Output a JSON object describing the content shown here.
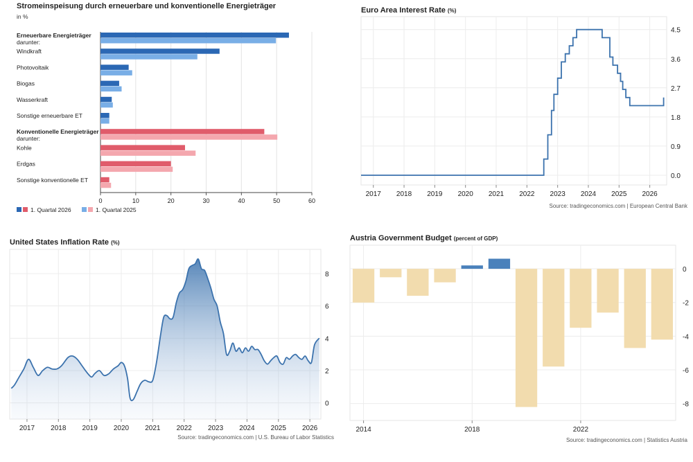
{
  "chart_data": [
    {
      "type": "bar",
      "orientation": "horizontal",
      "title": "Stromeinspeisung durch erneuerbare und konventionelle Energieträger",
      "subtitle": "in %",
      "categories": [
        {
          "label": "Erneuerbare Energieträger",
          "sublabel": "darunter:",
          "bold": true
        },
        {
          "label": "Windkraft"
        },
        {
          "label": "Photovoltaik"
        },
        {
          "label": "Biogas"
        },
        {
          "label": "Wasserkraft"
        },
        {
          "label": "Sonstige erneuerbare ET"
        },
        {
          "label": "Konventionelle Energieträger",
          "sublabel": "darunter:",
          "bold": true
        },
        {
          "label": "Kohle"
        },
        {
          "label": "Erdgas"
        },
        {
          "label": "Sonstige konventionelle ET"
        }
      ],
      "group": [
        "renewable",
        "renewable",
        "renewable",
        "renewable",
        "renewable",
        "renewable",
        "conventional",
        "conventional",
        "conventional",
        "conventional"
      ],
      "series": [
        {
          "name": "1. Quartal 2026",
          "values": [
            53.5,
            33.8,
            8.0,
            5.3,
            3.2,
            2.5,
            46.5,
            24.0,
            20.0,
            2.5
          ]
        },
        {
          "name": "1. Quartal 2025",
          "values": [
            49.8,
            27.5,
            9.0,
            6.0,
            3.5,
            2.5,
            50.2,
            27.0,
            20.5,
            3.0
          ]
        }
      ],
      "xlim": [
        0,
        60
      ],
      "xticks": [
        "0",
        "10",
        "20",
        "30",
        "40",
        "50",
        "60"
      ],
      "legend": [
        "1. Quartal 2026",
        "1. Quartal 2025"
      ],
      "legend_position": "bottom-left",
      "colors": {
        "renewable_2026": "#2b68b4",
        "renewable_2025": "#79aee6",
        "conventional_2026": "#e05c6b",
        "conventional_2025": "#f4a7ae"
      }
    },
    {
      "type": "line",
      "title": "Euro Area Interest Rate",
      "title_unit": "(%)",
      "xticks": [
        "2017",
        "2018",
        "2019",
        "2020",
        "2021",
        "2022",
        "2023",
        "2024",
        "2025",
        "2026"
      ],
      "yticks": [
        "0.0",
        "0.9",
        "1.8",
        "2.7",
        "3.6",
        "4.5"
      ],
      "xlim": [
        2016.6,
        2026.55
      ],
      "ylim": [
        -0.3,
        4.9
      ],
      "y_axis_side": "right",
      "grid": true,
      "line_color": "#3b72ad",
      "series": [
        {
          "x": [
            2016.6,
            2022.55,
            2022.55,
            2022.68,
            2022.68,
            2022.8,
            2022.8,
            2022.88,
            2022.88,
            2023.0,
            2023.0,
            2023.12,
            2023.12,
            2023.25,
            2023.25,
            2023.38,
            2023.38,
            2023.5,
            2023.5,
            2023.62,
            2023.62,
            2023.72,
            2023.72,
            2024.45,
            2024.45,
            2024.7,
            2024.7,
            2024.8,
            2024.8,
            2024.95,
            2024.95,
            2025.05,
            2025.05,
            2025.12,
            2025.12,
            2025.22,
            2025.22,
            2025.35,
            2025.35,
            2025.45,
            2025.45,
            2026.45,
            2026.45
          ],
          "y": [
            0.0,
            0.0,
            0.5,
            0.5,
            1.25,
            1.25,
            2.0,
            2.0,
            2.5,
            2.5,
            3.0,
            3.0,
            3.5,
            3.5,
            3.75,
            3.75,
            4.0,
            4.0,
            4.25,
            4.25,
            4.5,
            4.5,
            4.5,
            4.5,
            4.25,
            4.25,
            3.65,
            3.65,
            3.4,
            3.4,
            3.15,
            3.15,
            2.9,
            2.9,
            2.65,
            2.65,
            2.4,
            2.4,
            2.15,
            2.15,
            2.15,
            2.15,
            2.4
          ]
        }
      ],
      "source": "Source: tradingeconomics.com | European Central Bank"
    },
    {
      "type": "area",
      "title": "United States Inflation Rate",
      "title_unit": "(%)",
      "xticks": [
        "2017",
        "2018",
        "2019",
        "2020",
        "2021",
        "2022",
        "2023",
        "2024",
        "2025",
        "2026"
      ],
      "yticks": [
        "0",
        "2",
        "4",
        "6",
        "8"
      ],
      "xlim": [
        2016.45,
        2026.35
      ],
      "ylim": [
        -1.0,
        9.5
      ],
      "y_axis_side": "right",
      "grid": true,
      "line_color": "#3b72ad",
      "series": [
        {
          "x": [
            2016.5,
            2016.6,
            2016.75,
            2016.9,
            2017.05,
            2017.2,
            2017.35,
            2017.5,
            2017.65,
            2017.8,
            2017.95,
            2018.1,
            2018.3,
            2018.45,
            2018.6,
            2018.75,
            2018.9,
            2019.05,
            2019.15,
            2019.3,
            2019.45,
            2019.6,
            2019.75,
            2019.9,
            2020.0,
            2020.1,
            2020.2,
            2020.28,
            2020.38,
            2020.5,
            2020.62,
            2020.75,
            2020.88,
            2021.0,
            2021.12,
            2021.25,
            2021.35,
            2021.45,
            2021.55,
            2021.65,
            2021.75,
            2021.85,
            2021.95,
            2022.05,
            2022.15,
            2022.25,
            2022.35,
            2022.45,
            2022.55,
            2022.65,
            2022.75,
            2022.85,
            2022.95,
            2023.05,
            2023.15,
            2023.25,
            2023.35,
            2023.45,
            2023.55,
            2023.65,
            2023.75,
            2023.85,
            2023.95,
            2024.05,
            2024.15,
            2024.25,
            2024.35,
            2024.45,
            2024.55,
            2024.65,
            2024.75,
            2024.85,
            2024.95,
            2025.05,
            2025.15,
            2025.25,
            2025.35,
            2025.45,
            2025.55,
            2025.65,
            2025.75,
            2025.85,
            2025.95,
            2026.05,
            2026.15,
            2026.3
          ],
          "y": [
            0.9,
            1.1,
            1.6,
            2.1,
            2.7,
            2.2,
            1.7,
            2.0,
            2.2,
            2.1,
            2.1,
            2.3,
            2.8,
            2.9,
            2.7,
            2.3,
            1.9,
            1.6,
            1.8,
            2.0,
            1.7,
            1.8,
            2.1,
            2.3,
            2.5,
            2.3,
            1.5,
            0.3,
            0.2,
            0.7,
            1.2,
            1.4,
            1.3,
            1.4,
            2.5,
            4.2,
            5.3,
            5.4,
            5.2,
            5.3,
            6.2,
            6.8,
            7.0,
            7.5,
            8.3,
            8.5,
            8.6,
            8.9,
            8.3,
            8.2,
            7.7,
            7.1,
            6.4,
            6.0,
            5.0,
            4.3,
            3.0,
            3.2,
            3.7,
            3.2,
            3.4,
            3.1,
            3.4,
            3.2,
            3.5,
            3.3,
            3.3,
            3.0,
            2.6,
            2.4,
            2.6,
            2.8,
            2.9,
            2.5,
            2.4,
            2.8,
            2.7,
            2.9,
            3.0,
            2.8,
            2.7,
            2.9,
            2.6,
            2.5,
            3.6,
            4.0
          ]
        }
      ],
      "source": "Source: tradingeconomics.com | U.S. Bureau of Labor Statistics"
    },
    {
      "type": "bar",
      "title": "Austria Government Budget",
      "title_unit": "(percent of GDP)",
      "categories": [
        "2014",
        "2015",
        "2016",
        "2017",
        "2018",
        "2019",
        "2020",
        "2021",
        "2022",
        "2023",
        "2024",
        "2025"
      ],
      "xticks": [
        "2014",
        "2018",
        "2022"
      ],
      "values": [
        -2.0,
        -0.5,
        -1.6,
        -0.8,
        0.2,
        0.6,
        -8.2,
        -5.8,
        -3.5,
        -2.6,
        -4.7,
        -4.2
      ],
      "yticks": [
        "0",
        "-2",
        "-4",
        "-6",
        "-8"
      ],
      "ylim": [
        -9.0,
        1.4
      ],
      "y_axis_side": "right",
      "grid": true,
      "colors": {
        "positive": "#4a81bb",
        "negative": "#f2dcae"
      },
      "source": "Source: tradingeconomics.com | Statistics Austria"
    }
  ]
}
